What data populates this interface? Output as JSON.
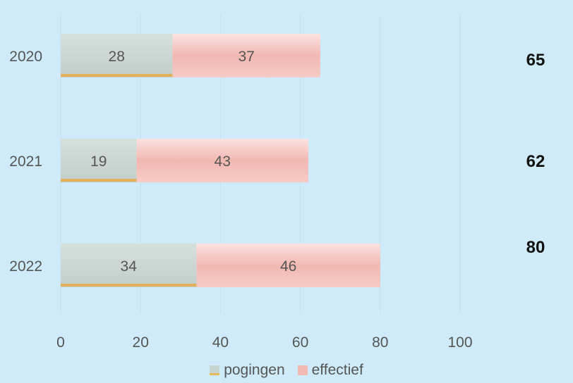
{
  "chart_data": {
    "type": "bar",
    "orientation": "horizontal",
    "stacked": true,
    "categories": [
      "2020",
      "2021",
      "2022"
    ],
    "series": [
      {
        "name": "pogingen",
        "values": [
          28,
          19,
          34
        ],
        "color": "#c8d4cf"
      },
      {
        "name": "effectief",
        "values": [
          37,
          43,
          46
        ],
        "color": "#f2b8b2"
      }
    ],
    "totals": [
      "65",
      "62",
      "80"
    ],
    "x_ticks": [
      "0",
      "20",
      "40",
      "60",
      "80",
      "100"
    ],
    "xlim": [
      0,
      100
    ],
    "grid": true,
    "legend_position": "bottom"
  }
}
